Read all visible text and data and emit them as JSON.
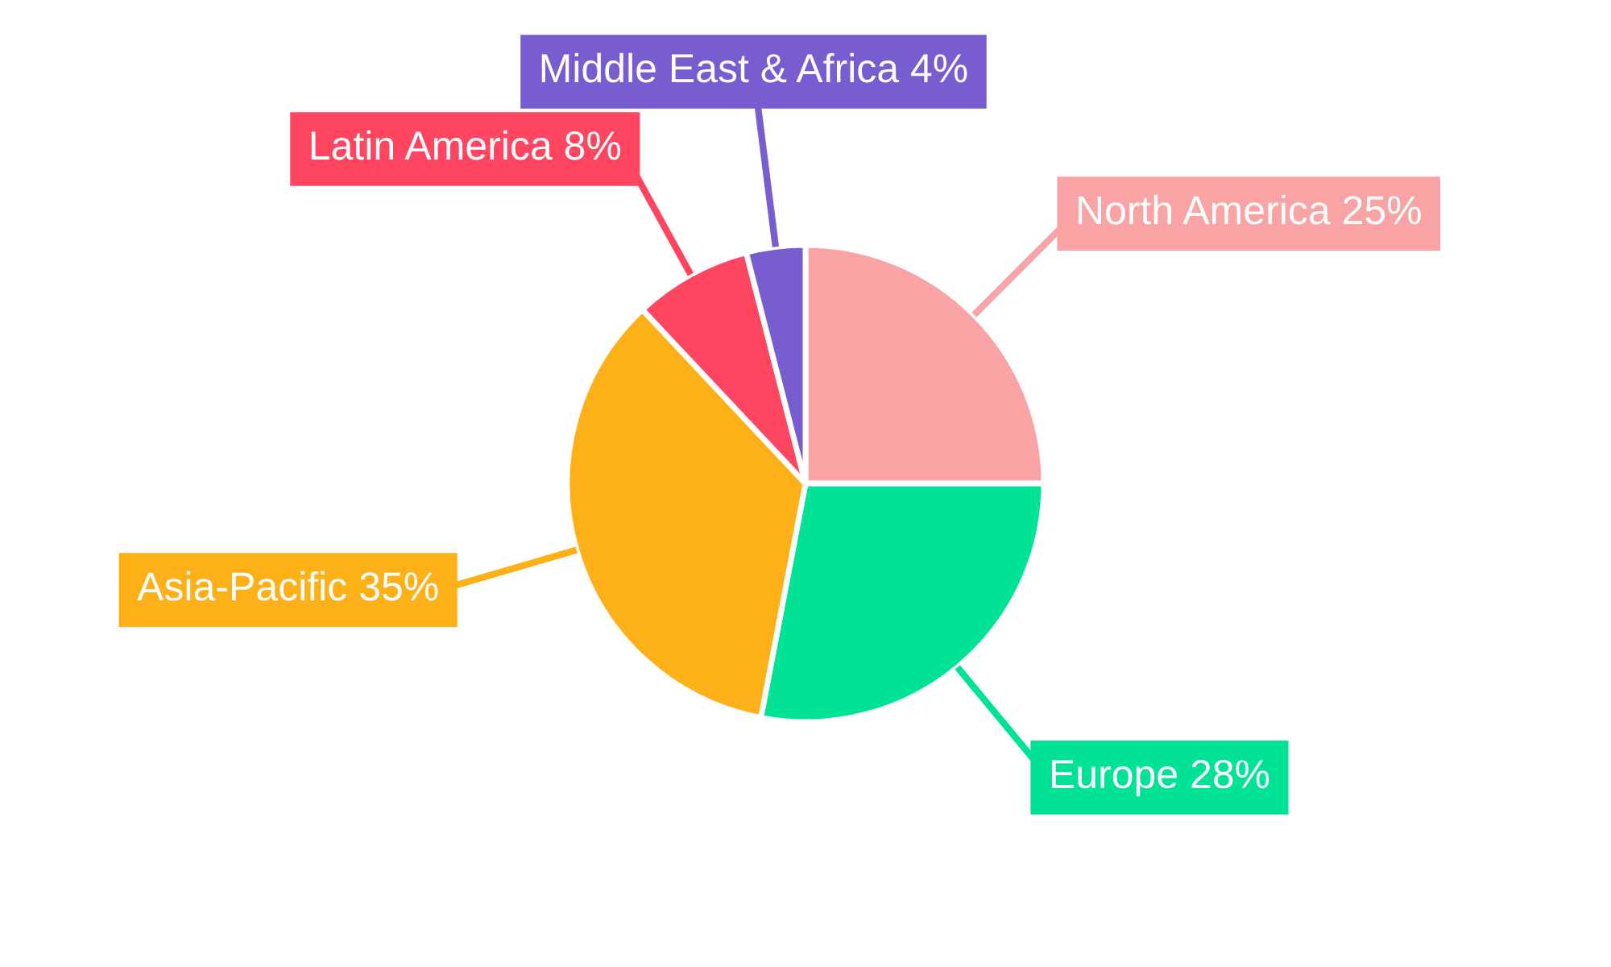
{
  "chart_data": {
    "type": "pie",
    "categories": [
      "North America",
      "Europe",
      "Asia-Pacific",
      "Latin America",
      "Middle East & Africa"
    ],
    "values": [
      25,
      28,
      35,
      8,
      4
    ],
    "value_labels": [
      "25%",
      "28%",
      "35%",
      "8%",
      "4%"
    ],
    "colors": [
      "#f9a3a4",
      "#00e396",
      "#feb019",
      "#ff4560",
      "#775dd0"
    ],
    "legend": false
  }
}
